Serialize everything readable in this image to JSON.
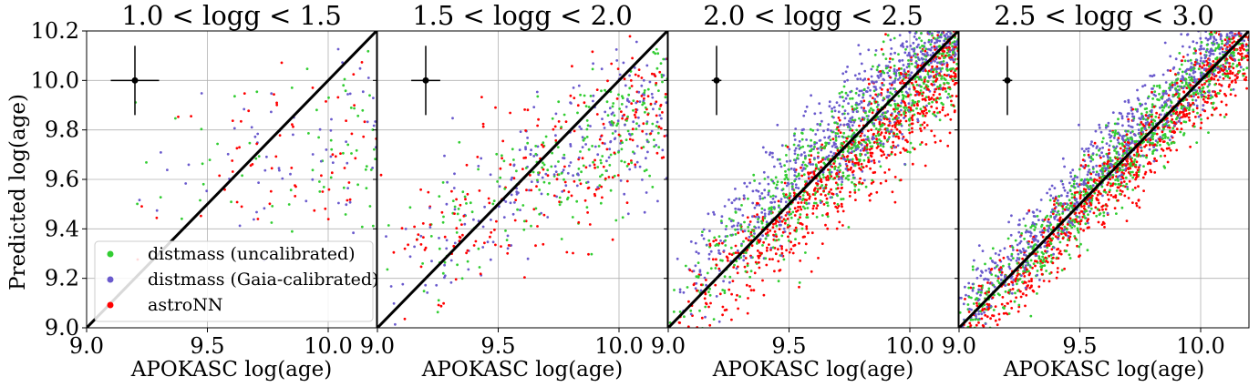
{
  "chart_data": {
    "type": "scatter",
    "ylabel": "Predicted log(age)",
    "xlabel": "APOKASC log(age)",
    "xlim": [
      9.0,
      10.2
    ],
    "ylim": [
      9.0,
      10.2
    ],
    "xticks": [
      "9.0",
      "9.5",
      "10.0"
    ],
    "yticks": [
      "9.0",
      "9.2",
      "9.4",
      "9.6",
      "9.8",
      "10.0",
      "10.2"
    ],
    "grid": true,
    "identity_line": true,
    "legend_position": "lower-left of first panel",
    "series": [
      {
        "name": "distmass (uncalibrated)",
        "color": "#32cd32"
      },
      {
        "name": "distmass (Gaia-calibrated)",
        "color": "#6a5acd"
      },
      {
        "name": "astroNN",
        "color": "#ff0000"
      }
    ],
    "panels": [
      {
        "title": "1.0 < logg < 1.5",
        "n_points": 190,
        "error_bar": {
          "x": 9.2,
          "y": 10.0,
          "xerr": 0.1,
          "yerr": 0.14
        }
      },
      {
        "title": "1.5 < logg < 2.0",
        "n_points": 700,
        "error_bar": {
          "x": 9.2,
          "y": 10.0,
          "xerr": 0.06,
          "yerr": 0.14
        }
      },
      {
        "title": "2.0 < logg < 2.5",
        "n_points": 2400,
        "error_bar": {
          "x": 9.2,
          "y": 10.0,
          "xerr": 0.02,
          "yerr": 0.14
        }
      },
      {
        "title": "2.5 < logg < 3.0",
        "n_points": 2600,
        "error_bar": {
          "x": 9.2,
          "y": 10.0,
          "xerr": 0.02,
          "yerr": 0.14
        }
      }
    ]
  }
}
